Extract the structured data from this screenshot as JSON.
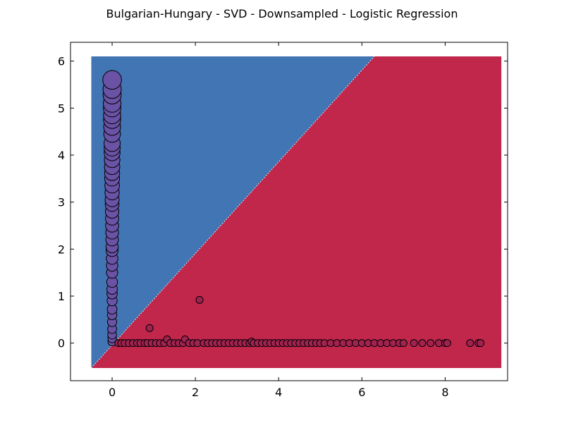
{
  "chart_data": {
    "type": "scatter",
    "title": "Bulgarian-Hungary - SVD - Downsampled - Logistic Regression",
    "xlabel": "",
    "ylabel": "",
    "xlim": [
      -1,
      9.5
    ],
    "ylim": [
      -0.8,
      6.4
    ],
    "xticks": [
      0,
      2,
      4,
      6,
      8
    ],
    "yticks": [
      0,
      1,
      2,
      3,
      4,
      5,
      6
    ],
    "grid": false,
    "decision_regions": {
      "x_range": [
        -0.5,
        9.35
      ],
      "y_range": [
        -0.53,
        6.1
      ],
      "boundary": [
        [
          -0.5,
          -0.53
        ],
        [
          6.3,
          6.1
        ]
      ],
      "upper_left_color": "#4275b3",
      "lower_right_color": "#c1264b"
    },
    "series": [
      {
        "color": "#6a52a5",
        "x": [
          0,
          0,
          0,
          0,
          0,
          0,
          0,
          0,
          0,
          0,
          0,
          0,
          0,
          0,
          0,
          0,
          0,
          0,
          0,
          0,
          0,
          0,
          0,
          0,
          0,
          0,
          0,
          0,
          0,
          0,
          0,
          0,
          0,
          0,
          0,
          0,
          0,
          0,
          0,
          0,
          0
        ],
        "y": [
          0.03,
          0.1,
          0.18,
          0.3,
          0.45,
          0.6,
          0.72,
          0.9,
          1.05,
          1.15,
          1.3,
          1.5,
          1.65,
          1.8,
          1.97,
          2.05,
          2.2,
          2.35,
          2.5,
          2.65,
          2.8,
          2.95,
          3.05,
          3.2,
          3.35,
          3.5,
          3.62,
          3.75,
          3.9,
          4.05,
          4.15,
          4.25,
          4.45,
          4.6,
          4.75,
          4.85,
          5.0,
          5.1,
          5.28,
          5.4,
          5.6
        ]
      },
      {
        "color": "#a0224f",
        "x": [
          0.15,
          0.22,
          0.3,
          0.4,
          0.5,
          0.6,
          0.68,
          0.78,
          0.85,
          0.9,
          0.95,
          1.05,
          1.15,
          1.25,
          1.32,
          1.4,
          1.5,
          1.6,
          1.7,
          1.75,
          1.85,
          1.95,
          2.05,
          2.1,
          2.2,
          2.3,
          2.4,
          2.5,
          2.6,
          2.7,
          2.8,
          2.9,
          3.0,
          3.1,
          3.2,
          3.3,
          3.35,
          3.4,
          3.5,
          3.6,
          3.7,
          3.8,
          3.9,
          4.0,
          4.1,
          4.2,
          4.3,
          4.4,
          4.5,
          4.6,
          4.7,
          4.8,
          4.9,
          5.0,
          5.1,
          5.25,
          5.4,
          5.55,
          5.7,
          5.85,
          6.0,
          6.15,
          6.3,
          6.45,
          6.6,
          6.75,
          6.9,
          7.0,
          7.25,
          7.45,
          7.65,
          7.85,
          8.0,
          8.05,
          8.6,
          8.8,
          8.85
        ],
        "y": [
          0,
          0,
          0,
          0,
          0,
          0,
          0,
          0,
          0,
          0.32,
          0,
          0,
          0,
          0,
          0.08,
          0,
          0,
          0,
          0,
          0.08,
          0,
          0,
          0,
          0.92,
          0,
          0,
          0,
          0,
          0,
          0,
          0,
          0,
          0,
          0,
          0,
          0,
          0.03,
          0,
          0,
          0,
          0,
          0,
          0,
          0,
          0,
          0,
          0,
          0,
          0,
          0,
          0,
          0,
          0,
          0,
          0,
          0,
          0,
          0,
          0,
          0,
          0,
          0,
          0,
          0,
          0,
          0,
          0,
          0,
          0,
          0,
          0,
          0,
          0,
          0,
          0,
          0,
          0
        ]
      }
    ]
  }
}
